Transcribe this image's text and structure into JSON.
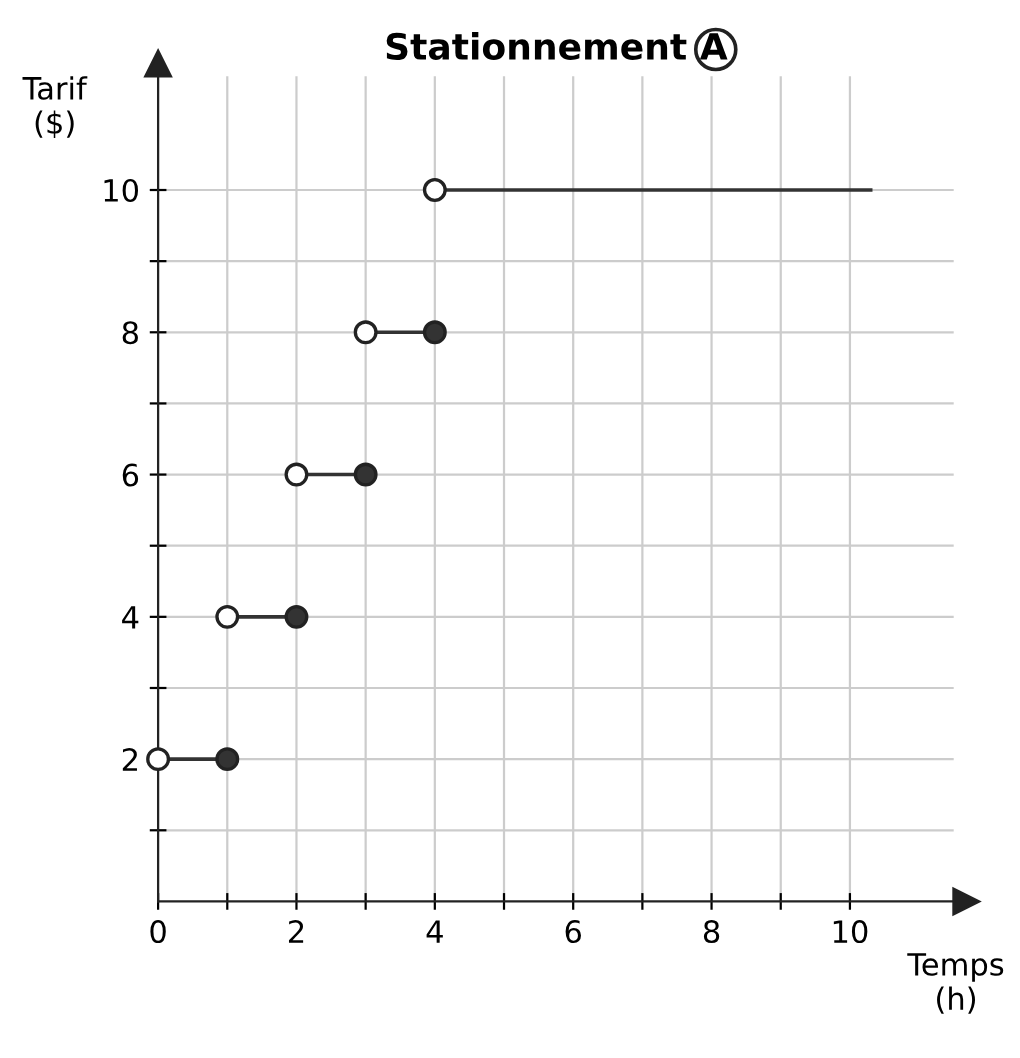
{
  "chart_data": {
    "type": "line",
    "title": "Stationnement A",
    "xlabel": "Temps\n(h)",
    "ylabel": "Tarif\n($)",
    "xlim": [
      0,
      11.5
    ],
    "ylim": [
      0,
      11.6
    ],
    "xticks": [
      0,
      {
        "value": 1,
        "label": null
      },
      2,
      {
        "value": 3,
        "label": null
      },
      4,
      {
        "value": 5,
        "label": null
      },
      6,
      {
        "value": 7,
        "label": null
      },
      8,
      {
        "value": 9,
        "label": null
      },
      10
    ],
    "yticks": [
      {
        "value": 1,
        "label": null
      },
      2,
      {
        "value": 3,
        "label": null
      },
      4,
      {
        "value": 5,
        "label": null
      },
      6,
      {
        "value": 7,
        "label": null
      },
      8,
      {
        "value": 9,
        "label": null
      },
      10
    ],
    "grid": true,
    "legend": false,
    "series": [
      {
        "color": "#333333",
        "marker": "none",
        "line_style": "solid",
        "x": [
          0,
          1
        ],
        "values": [
          2,
          2
        ]
      },
      {
        "color": "#333333",
        "marker": "none",
        "line_style": "solid",
        "x": [
          1,
          2
        ],
        "values": [
          4,
          4
        ]
      },
      {
        "color": "#333333",
        "marker": "none",
        "line_style": "solid",
        "x": [
          2,
          3
        ],
        "values": [
          6,
          6
        ]
      },
      {
        "color": "#333333",
        "marker": "none",
        "line_style": "solid",
        "x": [
          3,
          4
        ],
        "values": [
          8,
          8
        ]
      },
      {
        "color": "#333333",
        "marker": "none",
        "line_style": "solid",
        "x": [
          4,
          10.3
        ],
        "values": [
          10,
          10
        ]
      },
      {
        "type": "scatter",
        "color": "#ffffff",
        "marker": "circle",
        "x": [
          0,
          1,
          2,
          3,
          4
        ],
        "values": [
          2,
          4,
          6,
          8,
          10
        ]
      },
      {
        "type": "scatter",
        "color": "#333333",
        "marker": "circle",
        "x": [
          1,
          2,
          3,
          4
        ],
        "values": [
          2,
          4,
          6,
          8
        ]
      }
    ]
  }
}
